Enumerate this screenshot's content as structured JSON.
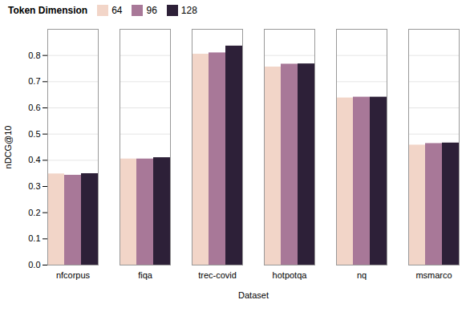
{
  "chart_data": {
    "type": "bar",
    "categories": [
      "nfcorpus",
      "fiqa",
      "trec-covid",
      "hotpotqa",
      "nq",
      "msmarco"
    ],
    "series": [
      {
        "name": "64",
        "color": "#f2d5c8",
        "values": [
          0.348,
          0.405,
          0.805,
          0.756,
          0.638,
          0.458
        ]
      },
      {
        "name": "96",
        "color": "#a87898",
        "values": [
          0.343,
          0.405,
          0.81,
          0.767,
          0.641,
          0.464
        ]
      },
      {
        "name": "128",
        "color": "#2d2038",
        "values": [
          0.349,
          0.41,
          0.836,
          0.768,
          0.641,
          0.466
        ]
      }
    ],
    "legend_title": "Token Dimension",
    "xlabel": "Dataset",
    "ylabel": "nDCG@10",
    "ylim": [
      0.0,
      0.9
    ],
    "yticks": [
      {
        "value": 0.0,
        "label": "0.0"
      },
      0.1,
      0.2,
      0.3,
      0.4,
      0.5,
      0.6,
      0.7,
      0.8
    ],
    "legend": "upper left",
    "grid": true
  }
}
